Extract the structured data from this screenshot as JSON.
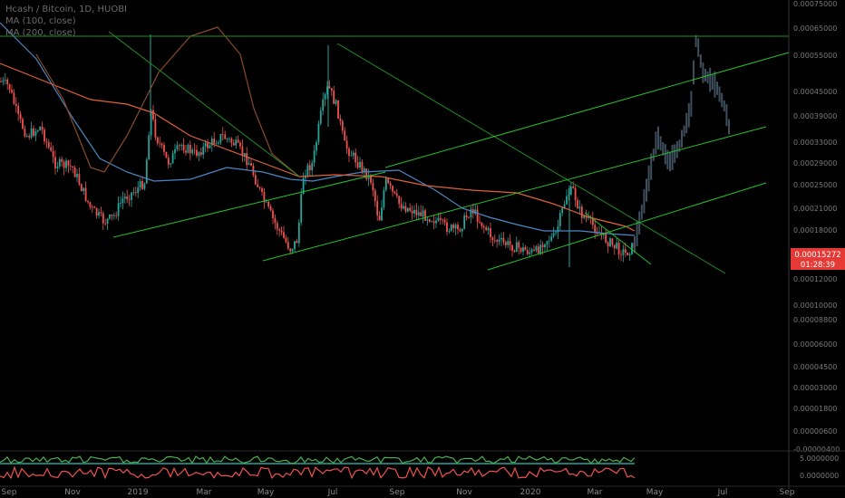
{
  "legend": {
    "symbol": "Hcash / Bitcoin, 1D, HUOBI",
    "ma100": "MA (100, close)",
    "ma200": "MA (200, close)"
  },
  "colors": {
    "background": "#000000",
    "up": "#26a69a",
    "down": "#ef5350",
    "projection": "#3e4e5c",
    "ma100": "#4a87c4",
    "ma200": "#e0603a",
    "ma_extra": "#8a4a2a",
    "trend": "#25c02a",
    "trend_dark": "#1f8f22",
    "price_tag": "#e53935",
    "osc_up": "#4caf50",
    "osc_down": "#ef5350",
    "osc_mid": "#26a69a"
  },
  "price_tag": {
    "price": "0.00015272",
    "countdown": "01:28:39"
  },
  "chart_data": {
    "type": "candlestick",
    "title": "Hcash / Bitcoin, 1D, HUOBI",
    "x_ticks": [
      "Sep",
      "Nov",
      "2019",
      "Mar",
      "May",
      "Jul",
      "Sep",
      "Nov",
      "2020",
      "Mar",
      "May",
      "Jul",
      "Sep"
    ],
    "y_ticks": [
      "0.00075000",
      "0.00065000",
      "0.00055000",
      "0.00045000",
      "0.00039000",
      "0.00033000",
      "0.00029000",
      "0.00025000",
      "0.00021000",
      "0.00018000",
      "0.00012000",
      "0.00010000",
      "0.00008800",
      "0.00006000",
      "0.00004500",
      "0.00003000",
      "0.00001800",
      "0.00000600",
      "-0.00000400"
    ],
    "y_scale": "log",
    "osc_ticks": [
      "5.0000000",
      "0.0000000"
    ],
    "series": [
      {
        "name": "MA (100, close)",
        "type": "line"
      },
      {
        "name": "MA (200, close)",
        "type": "line"
      }
    ],
    "grid": false
  }
}
